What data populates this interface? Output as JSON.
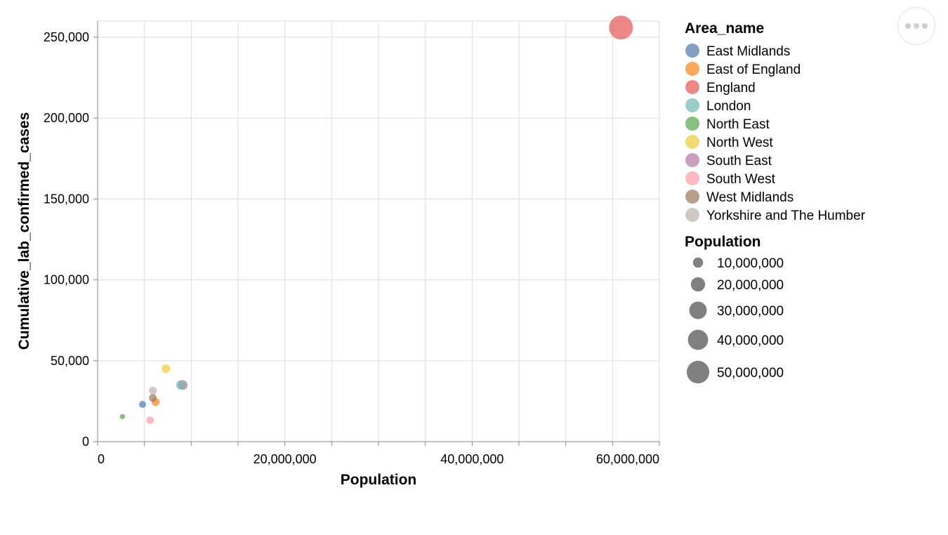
{
  "chart_data": {
    "type": "scatter",
    "xlabel": "Population",
    "ylabel": "Cumulative_lab_confirmed_cases",
    "xlim": [
      0,
      60000000
    ],
    "ylim": [
      0,
      260000
    ],
    "x_ticks": [
      0,
      5000000,
      10000000,
      15000000,
      20000000,
      25000000,
      30000000,
      35000000,
      40000000,
      45000000,
      50000000,
      55000000,
      60000000
    ],
    "x_tick_labels": [
      {
        "value": 0,
        "label": "0"
      },
      {
        "value": 20000000,
        "label": "20,000,000"
      },
      {
        "value": 40000000,
        "label": "40,000,000"
      },
      {
        "value": 60000000,
        "label": "60,000,000"
      }
    ],
    "y_ticks": [
      {
        "value": 0,
        "label": "0"
      },
      {
        "value": 50000,
        "label": "50,000"
      },
      {
        "value": 100000,
        "label": "100,000"
      },
      {
        "value": 150000,
        "label": "150,000"
      },
      {
        "value": 200000,
        "label": "200,000"
      },
      {
        "value": 250000,
        "label": "250,000"
      }
    ],
    "grid": true,
    "color_legend": {
      "title": "Area_name",
      "position": "right",
      "entries": [
        {
          "name": "East Midlands",
          "color": "#4c78a8"
        },
        {
          "name": "East of England",
          "color": "#f58518"
        },
        {
          "name": "England",
          "color": "#e45756"
        },
        {
          "name": "London",
          "color": "#72b7b2"
        },
        {
          "name": "North East",
          "color": "#54a24b"
        },
        {
          "name": "North West",
          "color": "#eeca3b"
        },
        {
          "name": "South East",
          "color": "#b279a2"
        },
        {
          "name": "South West",
          "color": "#ff9da6"
        },
        {
          "name": "West Midlands",
          "color": "#9d755d"
        },
        {
          "name": "Yorkshire and The Humber",
          "color": "#bab0ac"
        }
      ]
    },
    "size_legend": {
      "title": "Population",
      "entries": [
        {
          "value": 10000000,
          "label": "10,000,000"
        },
        {
          "value": 20000000,
          "label": "20,000,000"
        },
        {
          "value": 30000000,
          "label": "30,000,000"
        },
        {
          "value": 40000000,
          "label": "40,000,000"
        },
        {
          "value": 50000000,
          "label": "50,000,000"
        }
      ]
    },
    "points": [
      {
        "area": "East Midlands",
        "x": 4800000,
        "y": 23000
      },
      {
        "area": "East of England",
        "x": 6200000,
        "y": 24500
      },
      {
        "area": "England",
        "x": 55900000,
        "y": 256000
      },
      {
        "area": "London",
        "x": 8900000,
        "y": 35000
      },
      {
        "area": "North East",
        "x": 2650000,
        "y": 15500
      },
      {
        "area": "North West",
        "x": 7300000,
        "y": 45000
      },
      {
        "area": "South East",
        "x": 9100000,
        "y": 35000
      },
      {
        "area": "South West",
        "x": 5600000,
        "y": 13200
      },
      {
        "area": "West Midlands",
        "x": 5900000,
        "y": 27000
      },
      {
        "area": "Yorkshire and The Humber",
        "x": 5900000,
        "y": 31500
      }
    ]
  }
}
